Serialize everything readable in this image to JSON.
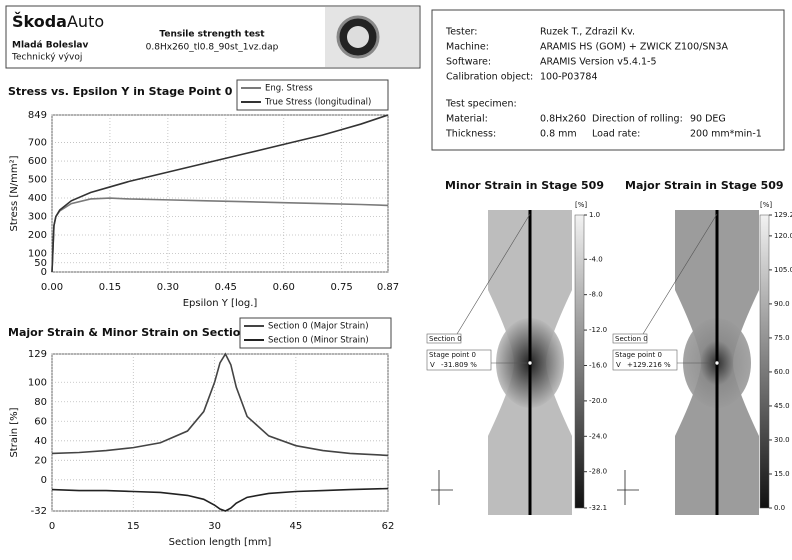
{
  "header": {
    "brand": "Škoda",
    "brand_suffix": "Auto",
    "place": "Mladá Boleslav",
    "department": "Technický vývoj",
    "title": "Tensile strength test",
    "file": "0.8Hx260_tl0.8_90st_1vz.dap"
  },
  "info": {
    "rows": [
      [
        "Tester:",
        "Ruzek T., Zdrazil Kv."
      ],
      [
        "Machine:",
        "ARAMIS HS (GOM) + ZWICK Z100/SN3A"
      ],
      [
        "Software:",
        "ARAMIS Version v5.4.1-5"
      ],
      [
        "Calibration object:",
        "100-P03784"
      ]
    ],
    "specimen_title": "Test specimen:",
    "specimen": [
      [
        "Material:",
        "0.8Hx260",
        "Direction of rolling:",
        "90 DEG"
      ],
      [
        "Thickness:",
        "0.8 mm",
        "Load rate:",
        "200 mm*min-1"
      ]
    ]
  },
  "chart_data": [
    {
      "type": "line",
      "title": "Stress vs. Epsilon Y in Stage Point 0",
      "x_label": "Epsilon Y [log.]",
      "y_label": "Stress [N/mm²]",
      "x": [
        0,
        0.005,
        0.01,
        0.02,
        0.05,
        0.1,
        0.15,
        0.2,
        0.3,
        0.4,
        0.5,
        0.6,
        0.7,
        0.8,
        0.87
      ],
      "series": [
        {
          "name": "Eng. Stress",
          "color": "#7a7a7a",
          "values": [
            0,
            250,
            300,
            330,
            370,
            395,
            400,
            395,
            390,
            385,
            380,
            375,
            370,
            365,
            360
          ]
        },
        {
          "name": "True Stress (longitudinal)",
          "color": "#333333",
          "values": [
            0,
            250,
            300,
            335,
            385,
            430,
            460,
            490,
            540,
            590,
            640,
            690,
            740,
            800,
            849
          ]
        }
      ],
      "xlim": [
        0,
        0.87
      ],
      "xticks": [
        {
          "value": 0,
          "label": "0.00"
        },
        {
          "value": 0.15,
          "label": "0.15"
        },
        {
          "value": 0.3,
          "label": "0.30"
        },
        {
          "value": 0.45,
          "label": "0.45"
        },
        {
          "value": 0.6,
          "label": "0.60"
        },
        {
          "value": 0.75,
          "label": "0.75"
        },
        {
          "value": 0.87,
          "label": "0.87"
        }
      ],
      "ylim": [
        0,
        849
      ],
      "yticks": [
        0,
        50,
        100,
        200,
        300,
        400,
        500,
        600,
        700,
        849
      ],
      "grid": true
    },
    {
      "type": "line",
      "title": "Major Strain & Minor Strain on Section 0",
      "x_label": "Section length [mm]",
      "y_label": "Strain [%]",
      "x": [
        0,
        5,
        10,
        15,
        20,
        25,
        28,
        30,
        31,
        32,
        33,
        34,
        36,
        40,
        45,
        50,
        55,
        62
      ],
      "series": [
        {
          "name": "Section 0 (Major Strain)",
          "color": "#444444",
          "values": [
            27,
            28,
            30,
            33,
            38,
            50,
            70,
            100,
            120,
            129,
            118,
            95,
            65,
            45,
            35,
            30,
            27,
            25
          ]
        },
        {
          "name": "Section 0 (Minor Strain)",
          "color": "#222222",
          "values": [
            -10,
            -11,
            -11,
            -12,
            -13,
            -16,
            -20,
            -26,
            -30,
            -32,
            -29,
            -24,
            -18,
            -14,
            -12,
            -11,
            -10,
            -9
          ]
        }
      ],
      "xlim": [
        0,
        62
      ],
      "xticks": [
        0,
        15,
        30,
        45,
        62
      ],
      "ylim": [
        -32,
        129
      ],
      "yticks": [
        -32,
        0,
        20,
        40,
        60,
        80,
        100,
        129
      ],
      "grid": true
    }
  ],
  "strain_maps": [
    {
      "title": "Minor Strain in Stage 509",
      "unit": "[%]",
      "ticks": [
        {
          "value": 1,
          "label": "1.0"
        },
        {
          "value": -4,
          "label": "-4.0"
        },
        {
          "value": -8,
          "label": "-8.0"
        },
        {
          "value": -12,
          "label": "-12.0"
        },
        {
          "value": -16,
          "label": "-16.0"
        },
        {
          "value": -20,
          "label": "-20.0"
        },
        {
          "value": -24,
          "label": "-24.0"
        },
        {
          "value": -28,
          "label": "-28.0"
        },
        {
          "value": -32.1,
          "label": "-32.1"
        }
      ],
      "section": "Section 0",
      "point": "Stage point 0",
      "component": "V",
      "value": -31.809,
      "value_label": "-31.809 %"
    },
    {
      "title": "Major Strain in Stage 509",
      "unit": "[%]",
      "ticks": [
        {
          "value": 129.2,
          "label": "129.2"
        },
        {
          "value": 120,
          "label": "120.0"
        },
        {
          "value": 105,
          "label": "105.0"
        },
        {
          "value": 90,
          "label": "90.0"
        },
        {
          "value": 75,
          "label": "75.0"
        },
        {
          "value": 60,
          "label": "60.0"
        },
        {
          "value": 45,
          "label": "45.0"
        },
        {
          "value": 30,
          "label": "30.0"
        },
        {
          "value": 15,
          "label": "15.0"
        },
        {
          "value": 0,
          "label": "0.0"
        }
      ],
      "section": "Section 0",
      "point": "Stage point 0",
      "component": "V",
      "value": 129.216,
      "value_label": "+129.216 %"
    }
  ]
}
